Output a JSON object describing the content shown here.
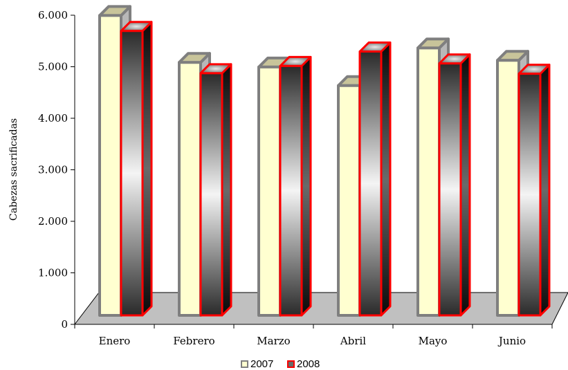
{
  "chart_data": {
    "type": "bar",
    "style": "3d-clustered-column",
    "categories": [
      "Enero",
      "Febrero",
      "Marzo",
      "Abril",
      "Mayo",
      "Junio"
    ],
    "series": [
      {
        "name": "2007",
        "values": [
          5820,
          4910,
          4820,
          4460,
          5190,
          4950
        ],
        "color": "#ffffd0",
        "edge_color": "#7f7f7f"
      },
      {
        "name": "2008",
        "values": [
          5520,
          4700,
          4840,
          5120,
          4890,
          4690
        ],
        "color": "#404040",
        "edge_color": "#ff0000"
      }
    ],
    "ylabel": "Cabezas sacrificadas",
    "ylim": [
      0,
      6000
    ],
    "yticks": [
      0,
      1000,
      2000,
      3000,
      4000,
      5000,
      6000
    ],
    "ytick_labels": [
      "0",
      "1.000",
      "2.000",
      "3.000",
      "4.000",
      "5.000",
      "6.000"
    ],
    "grid": false,
    "legend_position": "bottom",
    "floor_color": "#c0c0c0"
  }
}
